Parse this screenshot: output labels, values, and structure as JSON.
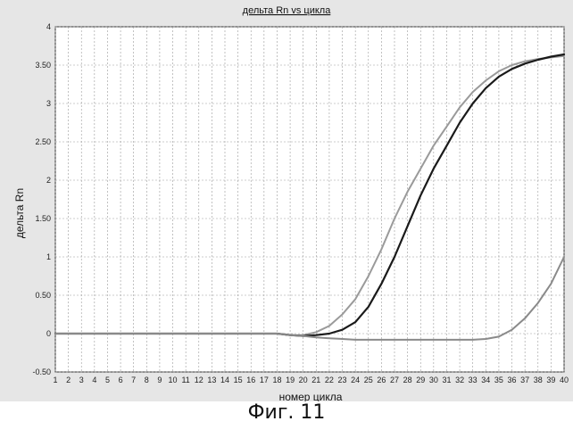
{
  "chart_data": {
    "type": "line",
    "title": "дельта Rn vs цикла",
    "xlabel": "номер цикла",
    "ylabel": "дельта Rn",
    "x": [
      1,
      2,
      3,
      4,
      5,
      6,
      7,
      8,
      9,
      10,
      11,
      12,
      13,
      14,
      15,
      16,
      17,
      18,
      19,
      20,
      21,
      22,
      23,
      24,
      25,
      26,
      27,
      28,
      29,
      30,
      31,
      32,
      33,
      34,
      35,
      36,
      37,
      38,
      39,
      40
    ],
    "xlim": [
      1,
      40
    ],
    "ylim": [
      -0.5,
      4
    ],
    "y_ticks": [
      "-0.50",
      "0",
      "0.50",
      "1",
      "1.50",
      "2",
      "2.50",
      "3",
      "3.50",
      "4"
    ],
    "x_ticks": [
      "1",
      "2",
      "3",
      "4",
      "5",
      "6",
      "7",
      "8",
      "9",
      "10",
      "11",
      "12",
      "13",
      "14",
      "15",
      "16",
      "17",
      "18",
      "19",
      "20",
      "21",
      "22",
      "23",
      "24",
      "25",
      "26",
      "27",
      "28",
      "29",
      "30",
      "31",
      "32",
      "33",
      "34",
      "35",
      "36",
      "37",
      "38",
      "39",
      "40"
    ],
    "grid": true,
    "series": [
      {
        "color": "#9a9a9a",
        "values": [
          0,
          0,
          0,
          0,
          0,
          0,
          0,
          0,
          0,
          0,
          0,
          0,
          0,
          0,
          0,
          0,
          0,
          0,
          -0.02,
          -0.02,
          0.02,
          0.1,
          0.25,
          0.45,
          0.75,
          1.1,
          1.5,
          1.85,
          2.15,
          2.45,
          2.7,
          2.95,
          3.15,
          3.3,
          3.42,
          3.5,
          3.55,
          3.58,
          3.6,
          3.62
        ]
      },
      {
        "color": "#1a1a1a",
        "values": [
          0,
          0,
          0,
          0,
          0,
          0,
          0,
          0,
          0,
          0,
          0,
          0,
          0,
          0,
          0,
          0,
          0,
          0,
          -0.02,
          -0.03,
          -0.02,
          0,
          0.05,
          0.15,
          0.35,
          0.65,
          1.0,
          1.4,
          1.8,
          2.15,
          2.45,
          2.75,
          3.0,
          3.2,
          3.35,
          3.45,
          3.52,
          3.57,
          3.61,
          3.64
        ]
      },
      {
        "color": "#8a8a8a",
        "values": [
          0,
          0,
          0,
          0,
          0,
          0,
          0,
          0,
          0,
          0,
          0,
          0,
          0,
          0,
          0,
          0,
          0,
          0,
          -0.02,
          -0.03,
          -0.05,
          -0.06,
          -0.07,
          -0.08,
          -0.08,
          -0.08,
          -0.08,
          -0.08,
          -0.08,
          -0.08,
          -0.08,
          -0.08,
          -0.08,
          -0.07,
          -0.04,
          0.05,
          0.2,
          0.4,
          0.65,
          1.0
        ]
      }
    ]
  },
  "caption": "Фиг. 11"
}
